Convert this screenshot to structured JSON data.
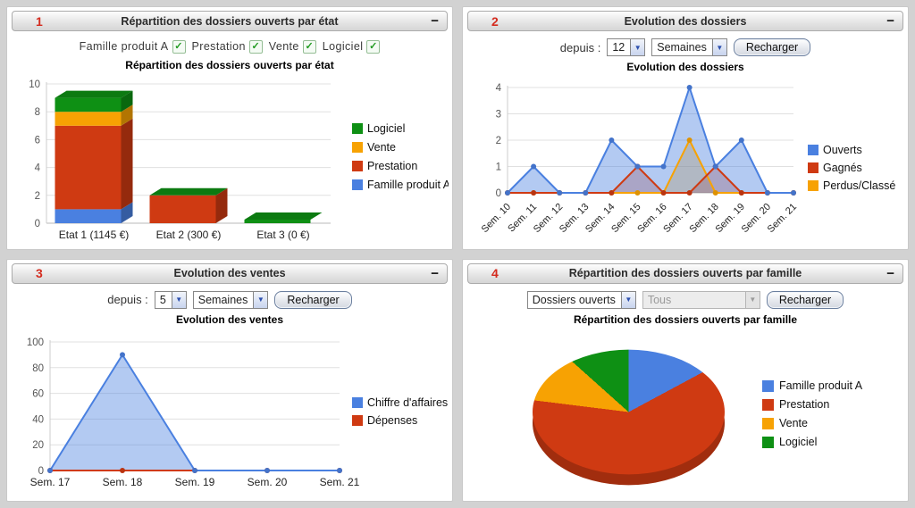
{
  "icons": {
    "collapse": "−",
    "dropdown_arrow": "▼",
    "checkbox_check": "✓"
  },
  "colors": {
    "blue": "#4a80e0",
    "red": "#cf3a12",
    "orange": "#f7a203",
    "green": "#0e9014",
    "panel_number": "#d42b1e"
  },
  "panels": [
    {
      "number": "1",
      "title": "Répartition des dossiers ouverts par état",
      "collapse_label": "−",
      "filters": [
        {
          "label": "Famille produit A",
          "checked": true
        },
        {
          "label": "Prestation",
          "checked": true
        },
        {
          "label": "Vente",
          "checked": true
        },
        {
          "label": "Logiciel",
          "checked": true
        }
      ]
    },
    {
      "number": "2",
      "title": "Evolution des dossiers",
      "collapse_label": "−",
      "controls": {
        "label": "depuis :",
        "period_value": "12",
        "unit_value": "Semaines",
        "reload_label": "Recharger"
      }
    },
    {
      "number": "3",
      "title": "Evolution des ventes",
      "collapse_label": "−",
      "controls": {
        "label": "depuis :",
        "period_value": "5",
        "unit_value": "Semaines",
        "reload_label": "Recharger"
      }
    },
    {
      "number": "4",
      "title": "Répartition des dossiers ouverts par famille",
      "collapse_label": "−",
      "controls": {
        "type_value": "Dossiers ouverts",
        "filter_value": "Tous",
        "filter_disabled": true,
        "reload_label": "Recharger"
      }
    }
  ],
  "chart_data": [
    {
      "type": "bar",
      "stacked": true,
      "three_d": true,
      "title": "Répartition des dossiers ouverts par état",
      "categories": [
        "Etat 1 (1145 €)",
        "Etat 2 (300 €)",
        "Etat 3 (0 €)"
      ],
      "series": [
        {
          "name": "Famille produit A",
          "color": "#4a80e0",
          "values": [
            1,
            0,
            0
          ]
        },
        {
          "name": "Prestation",
          "color": "#cf3a12",
          "values": [
            6,
            2,
            0
          ]
        },
        {
          "name": "Vente",
          "color": "#f7a203",
          "values": [
            1,
            0,
            0
          ]
        },
        {
          "name": "Logiciel",
          "color": "#0e9014",
          "values": [
            1,
            0,
            0
          ]
        }
      ],
      "ylim": [
        0,
        10
      ],
      "yticks": [
        0,
        2,
        4,
        6,
        8,
        10
      ],
      "legend": [
        "Logiciel",
        "Vente",
        "Prestation",
        "Famille produit A"
      ],
      "legend_position": "right",
      "grid": true
    },
    {
      "type": "area",
      "title": "Evolution des dossiers",
      "x": [
        "Sem. 10",
        "Sem. 11",
        "Sem. 12",
        "Sem. 13",
        "Sem. 14",
        "Sem. 15",
        "Sem. 16",
        "Sem. 17",
        "Sem. 18",
        "Sem. 19",
        "Sem. 20",
        "Sem. 21"
      ],
      "series": [
        {
          "name": "Ouverts",
          "color": "#4a80e0",
          "values": [
            0,
            1,
            0,
            0,
            2,
            1,
            1,
            4,
            1,
            2,
            0,
            0
          ]
        },
        {
          "name": "Gagnés",
          "color": "#cf3a12",
          "values": [
            0,
            0,
            0,
            0,
            0,
            1,
            0,
            0,
            1,
            0,
            0,
            0
          ]
        },
        {
          "name": "Perdus/Classé",
          "color": "#f7a203",
          "values": [
            0,
            0,
            0,
            0,
            0,
            0,
            0,
            2,
            0,
            0,
            0,
            0
          ]
        }
      ],
      "ylim": [
        0,
        4
      ],
      "yticks": [
        0,
        1,
        2,
        3,
        4
      ],
      "x_label_rotation": -45,
      "legend_position": "right",
      "grid": true
    },
    {
      "type": "area",
      "title": "Evolution des ventes",
      "x": [
        "Sem. 17",
        "Sem. 18",
        "Sem. 19",
        "Sem. 20",
        "Sem. 21"
      ],
      "series": [
        {
          "name": "Chiffre d'affaires",
          "color": "#4a80e0",
          "values": [
            0,
            90,
            0,
            0,
            0
          ]
        },
        {
          "name": "Dépenses",
          "color": "#cf3a12",
          "values": [
            0,
            0,
            0,
            0,
            0
          ]
        }
      ],
      "ylim": [
        0,
        100
      ],
      "yticks": [
        0,
        20,
        40,
        60,
        80,
        100
      ],
      "x_label_rotation": 0,
      "legend_position": "right",
      "grid": true
    },
    {
      "type": "pie",
      "three_d": true,
      "title": "Répartition des dossiers ouverts par famille",
      "labels": [
        "Famille produit A",
        "Prestation",
        "Vente",
        "Logiciel"
      ],
      "colors": [
        "#4a80e0",
        "#cf3a12",
        "#f7a203",
        "#0e9014"
      ],
      "values_percent": [
        14,
        64,
        12,
        10
      ],
      "start_angle_deg": 0,
      "clockwise": true,
      "legend_position": "right"
    }
  ]
}
